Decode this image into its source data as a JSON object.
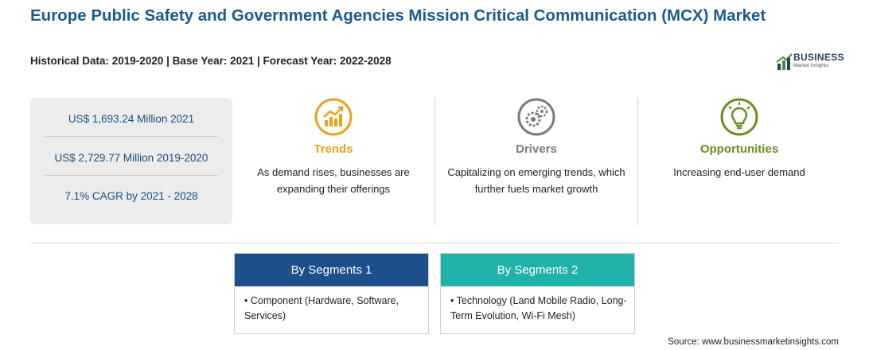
{
  "header": {
    "title": "Europe Public Safety and Government Agencies Mission Critical Communication (MCX) Market",
    "subtitle": "Historical Data: 2019-2020 | Base Year: 2021 | Forecast Year: 2022-2028"
  },
  "logo": {
    "main": "BUSINESS",
    "sub": "Market Insights"
  },
  "stats": [
    "US$ 1,693.24 Million 2021",
    "US$ 2,729.77 Million 2019-2020",
    "7.1% CAGR by 2021 - 2028"
  ],
  "columns": [
    {
      "heading": "Trends",
      "text": "As demand rises, businesses are expanding their offerings",
      "icon": "trend-chart-icon",
      "color": "#e8a317"
    },
    {
      "heading": "Drivers",
      "text": "Capitalizing on emerging trends, which further fuels market growth",
      "icon": "gears-icon",
      "color": "#7a7a7a"
    },
    {
      "heading": "Opportunities",
      "text": "Increasing end-user demand",
      "icon": "lightbulb-icon",
      "color": "#6b8e23"
    }
  ],
  "segments": [
    {
      "heading": "By Segments 1",
      "bullet": "Component (Hardware, Software, Services)",
      "color": "#1d4f8a"
    },
    {
      "heading": "By Segments 2",
      "bullet": "Technology (Land Mobile Radio, Long-Term Evolution, Wi-Fi Mesh)",
      "color": "#20b2aa"
    }
  ],
  "source": "Source: www.businessmarketinsights.com"
}
